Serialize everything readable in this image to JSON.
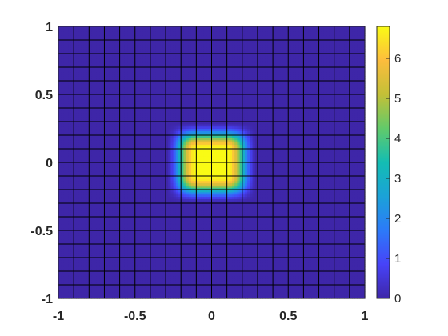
{
  "chart_data": {
    "type": "heatmap",
    "title": "",
    "xlabel": "",
    "ylabel": "",
    "xlim": [
      -1,
      1
    ],
    "ylim": [
      -1,
      1
    ],
    "clim": [
      0,
      6.8
    ],
    "grid_resolution": 21,
    "shading": "interp",
    "mesh_edges": true,
    "colormap": "parula",
    "peak": {
      "x": 0,
      "y": 0,
      "value": 6.8
    },
    "plateau_halfwidth": 0.1,
    "support_halfwidth": 0.3,
    "x_ticks": [
      -1,
      -0.5,
      0,
      0.5,
      1
    ],
    "x_tick_labels": [
      "-1",
      "-0.5",
      "0",
      "0.5",
      "1"
    ],
    "y_ticks": [
      1,
      0.5,
      0,
      -0.5,
      -1
    ],
    "y_tick_labels": [
      "1",
      "0.5",
      "0",
      "-0.5",
      "-1"
    ],
    "colorbar": {
      "placement": "right",
      "ticks": [
        0,
        1,
        2,
        3,
        4,
        5,
        6
      ],
      "tick_labels": [
        "0",
        "1",
        "2",
        "3",
        "4",
        "5",
        "6"
      ]
    }
  }
}
